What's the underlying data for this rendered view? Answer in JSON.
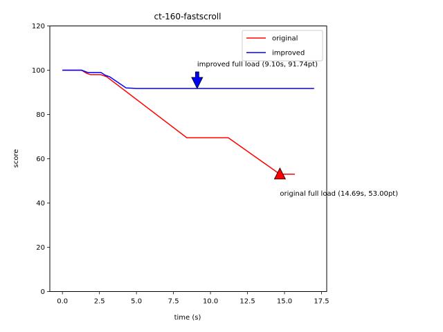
{
  "chart_data": {
    "type": "line",
    "title": "ct-160-fastscroll",
    "xlabel": "time (s)",
    "ylabel": "score",
    "xlim": [
      -0.85,
      17.85
    ],
    "ylim": [
      0,
      120
    ],
    "xticks": [
      0.0,
      2.5,
      5.0,
      7.5,
      10.0,
      12.5,
      15.0,
      17.5
    ],
    "xtick_labels": [
      "0.0",
      "2.5",
      "5.0",
      "7.5",
      "10.0",
      "12.5",
      "15.0",
      "17.5"
    ],
    "yticks": [
      0,
      20,
      40,
      60,
      80,
      100,
      120
    ],
    "ytick_labels": [
      "0",
      "20",
      "40",
      "60",
      "80",
      "100",
      "120"
    ],
    "grid": false,
    "legend_position": "top-right",
    "series": [
      {
        "name": "original",
        "color": "#ff0000",
        "points": [
          [
            0,
            100
          ],
          [
            1.3,
            100
          ],
          [
            1.6,
            98.7
          ],
          [
            1.9,
            98
          ],
          [
            2.6,
            98
          ],
          [
            3.0,
            97
          ],
          [
            8.4,
            69.5
          ],
          [
            11.2,
            69.5
          ],
          [
            14.69,
            53
          ],
          [
            15.7,
            53
          ]
        ]
      },
      {
        "name": "improved",
        "color": "#0000ff",
        "points": [
          [
            0,
            100
          ],
          [
            1.3,
            100
          ],
          [
            1.7,
            99
          ],
          [
            2.6,
            99
          ],
          [
            2.9,
            97.7
          ],
          [
            3.2,
            97
          ],
          [
            4.3,
            92
          ],
          [
            5.0,
            91.74
          ],
          [
            17.0,
            91.74
          ]
        ]
      }
    ],
    "annotations": [
      {
        "text": "improved full load (9.10s, 91.74pt)",
        "x": 9.1,
        "y": 91.74,
        "marker": "down-arrow",
        "color": "#0000ff"
      },
      {
        "text": "original full load (14.69s, 53.00pt)",
        "x": 14.69,
        "y": 53.0,
        "marker": "up-arrow",
        "color": "#ff0000"
      }
    ]
  }
}
